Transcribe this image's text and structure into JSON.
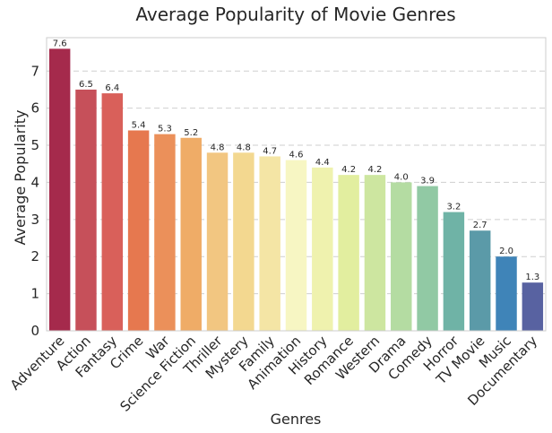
{
  "chart_data": {
    "type": "bar",
    "title": "Average Popularity of Movie Genres",
    "xlabel": "Genres",
    "ylabel": "Average Popularity",
    "ylim": [
      0,
      7.9
    ],
    "yticks": [
      0,
      1,
      2,
      3,
      4,
      5,
      6,
      7
    ],
    "grid": true,
    "categories": [
      "Adventure",
      "Action",
      "Fantasy",
      "Crime",
      "War",
      "Science Fiction",
      "Thriller",
      "Mystery",
      "Family",
      "Animation",
      "History",
      "Romance",
      "Western",
      "Drama",
      "Comedy",
      "Horror",
      "TV Movie",
      "Music",
      "Documentary"
    ],
    "values": [
      7.6,
      6.5,
      6.4,
      5.4,
      5.3,
      5.2,
      4.8,
      4.8,
      4.7,
      4.6,
      4.4,
      4.2,
      4.2,
      4.0,
      3.9,
      3.2,
      2.7,
      2.0,
      1.3
    ],
    "value_labels": [
      "7.6",
      "6.5",
      "6.4",
      "5.4",
      "5.3",
      "5.2",
      "4.8",
      "4.8",
      "4.7",
      "4.6",
      "4.4",
      "4.2",
      "4.2",
      "4.0",
      "3.9",
      "3.2",
      "2.7",
      "2.0",
      "1.3"
    ],
    "colors": [
      "#a52a4c",
      "#c6505a",
      "#d9605a",
      "#e6784f",
      "#eb905a",
      "#efac67",
      "#f2c681",
      "#f3d890",
      "#f4e5a5",
      "#f7f6c3",
      "#eff2ae",
      "#e2ee9f",
      "#cde6a0",
      "#b4dca2",
      "#91c9a4",
      "#6fb3a6",
      "#5b9aa8",
      "#3f84b8",
      "#5862a1"
    ]
  }
}
